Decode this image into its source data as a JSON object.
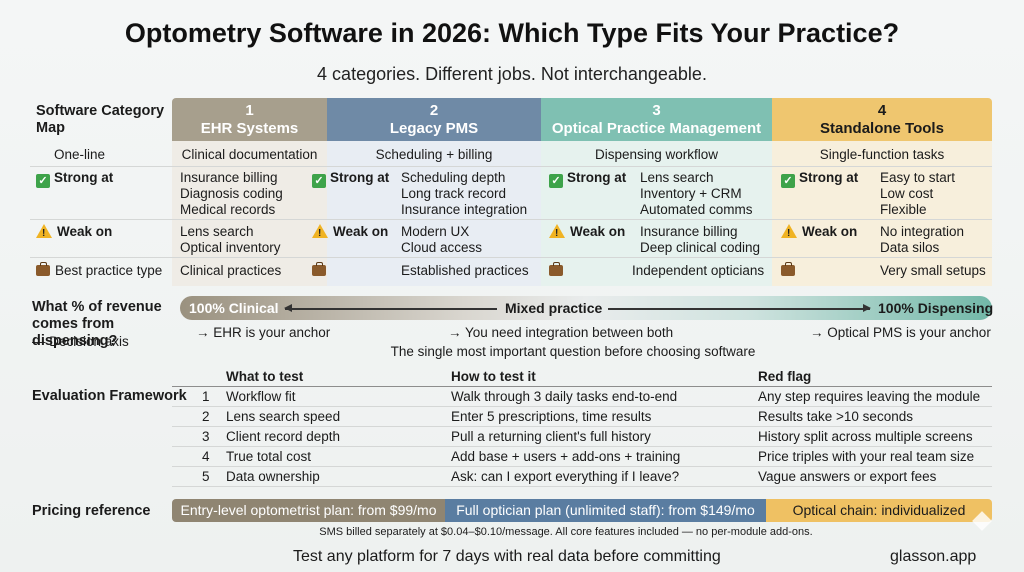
{
  "header": {
    "title": "Optometry Software in 2026: Which Type Fits Your Practice?",
    "subtitle": "4 categories. Different jobs. Not interchangeable."
  },
  "map": {
    "label": "Software Category Map",
    "rowlabels": {
      "oneline": "One-line",
      "strong": "Strong at",
      "weak": "Weak on",
      "best": "Best practice type"
    },
    "categories": [
      {
        "num": "1",
        "name": "EHR Systems",
        "oneline": "Clinical documentation",
        "strong": [
          "Insurance billing",
          "Diagnosis coding",
          "Medical records"
        ],
        "weak": [
          "Lens search",
          "Optical inventory"
        ],
        "best": "Clinical practices"
      },
      {
        "num": "2",
        "name": "Legacy PMS",
        "oneline": "Scheduling + billing",
        "strong": [
          "Scheduling depth",
          "Long track record",
          "Insurance integration"
        ],
        "weak": [
          "Modern UX",
          "Cloud access"
        ],
        "best": "Established practices"
      },
      {
        "num": "3",
        "name": "Optical Practice Management",
        "oneline": "Dispensing workflow",
        "strong": [
          "Lens search",
          "Inventory + CRM",
          "Automated comms"
        ],
        "weak": [
          "Insurance billing",
          "Deep clinical coding"
        ],
        "best": "Independent opticians"
      },
      {
        "num": "4",
        "name": "Standalone Tools",
        "oneline": "Single-function tasks",
        "strong": [
          "Easy to start",
          "Low cost",
          "Flexible"
        ],
        "weak": [
          "No integration",
          "Data silos"
        ],
        "best": "Very small setups"
      }
    ],
    "colors": {
      "ehr": "#a79f8d",
      "legacy": "#6f8aa6",
      "optical": "#7fc0b2",
      "standalone": "#efc66f"
    },
    "icons": {
      "strong": "check-mark-icon",
      "weak": "warning-icon",
      "best": "briefcase-icon"
    }
  },
  "axis": {
    "question": "What % of revenue comes from dispensing?",
    "sub": "— Decision axis",
    "left": "100% Clinical",
    "mid": "Mixed practice",
    "right": "100% Dispensing",
    "note_left": "→ EHR is your anchor",
    "note_mid": "→ You need integration between both",
    "note_right": "→ Optical PMS is your anchor",
    "caption": "The single most important question before choosing software"
  },
  "evaluation": {
    "label": "Evaluation Framework",
    "headers": {
      "what": "What to test",
      "how": "How to test it",
      "red": "Red flag"
    },
    "rows": [
      {
        "num": "1",
        "what": "Workflow fit",
        "how": "Walk through 3 daily tasks end-to-end",
        "red": "Any step requires leaving the module"
      },
      {
        "num": "2",
        "what": "Lens search speed",
        "how": "Enter 5 prescriptions, time results",
        "red": "Results take >10 seconds"
      },
      {
        "num": "3",
        "what": "Client record depth",
        "how": "Pull a returning client's full history",
        "red": "History split across multiple screens"
      },
      {
        "num": "4",
        "what": "True total cost",
        "how": "Add base + users + add-ons + training",
        "red": "Price triples with your real team size"
      },
      {
        "num": "5",
        "what": "Data ownership",
        "how": "Ask: can I export everything if I leave?",
        "red": "Vague answers or export fees"
      }
    ]
  },
  "pricing": {
    "label": "Pricing reference",
    "plans": [
      "Entry-level optometrist plan: from $99/mo",
      "Full optician plan (unlimited staff): from $149/mo",
      "Optical chain: individualized"
    ],
    "note": "SMS billed separately at $0.04–$0.10/message. All core features included — no per-module add-ons."
  },
  "footer": {
    "cta": "Test any platform for 7 days with real data before committing",
    "brand": "glasson.app"
  }
}
